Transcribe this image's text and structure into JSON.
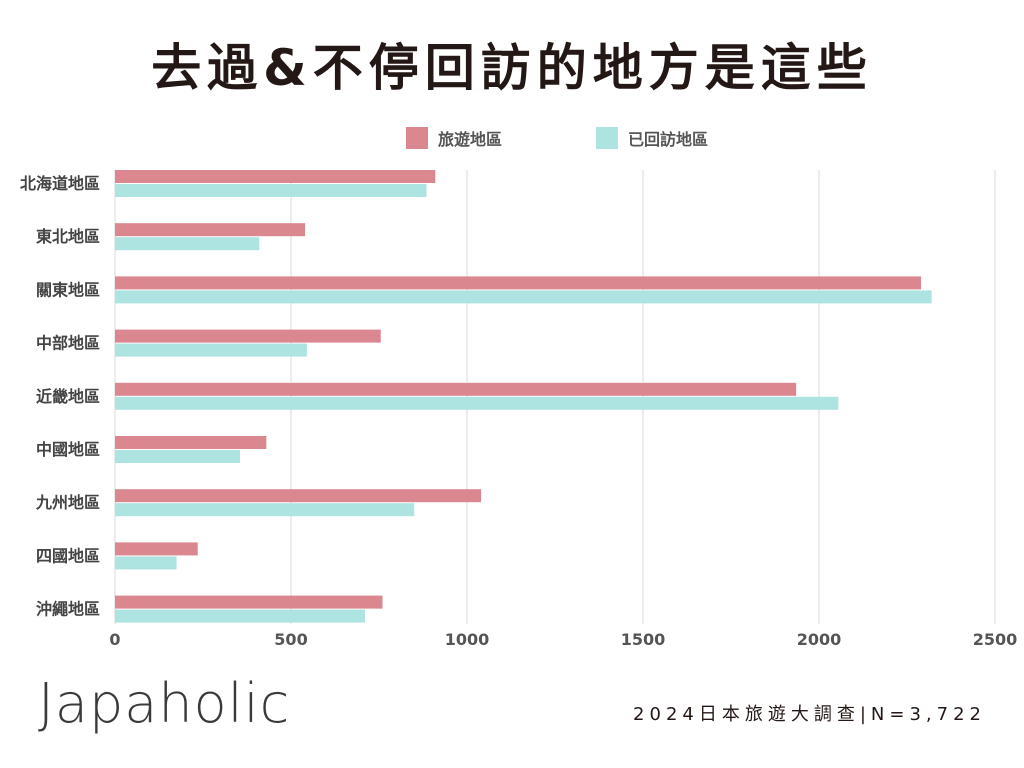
{
  "title": "去過&不停回訪的地方是這些",
  "brand": "Japaholic",
  "footer": "2024日本旅遊大調查|N=3,722",
  "colors": {
    "series1": "#db8790",
    "series2": "#ade4e1",
    "grid": "#d9d9d9",
    "text": "#231815"
  },
  "chart_data": {
    "type": "bar",
    "orientation": "horizontal",
    "categories": [
      "北海道地區",
      "東北地區",
      "關東地區",
      "中部地區",
      "近畿地區",
      "中國地區",
      "九州地區",
      "四國地區",
      "沖繩地區"
    ],
    "series": [
      {
        "name": "旅遊地區",
        "values": [
          910,
          540,
          2290,
          755,
          1935,
          430,
          1040,
          235,
          760
        ]
      },
      {
        "name": "已回訪地區",
        "values": [
          885,
          410,
          2320,
          545,
          2055,
          355,
          850,
          175,
          710
        ]
      }
    ],
    "xlim": [
      0,
      2500
    ],
    "xticks": [
      0,
      500,
      1000,
      1500,
      2000,
      2500
    ],
    "grid": true,
    "legend_position": "top"
  }
}
